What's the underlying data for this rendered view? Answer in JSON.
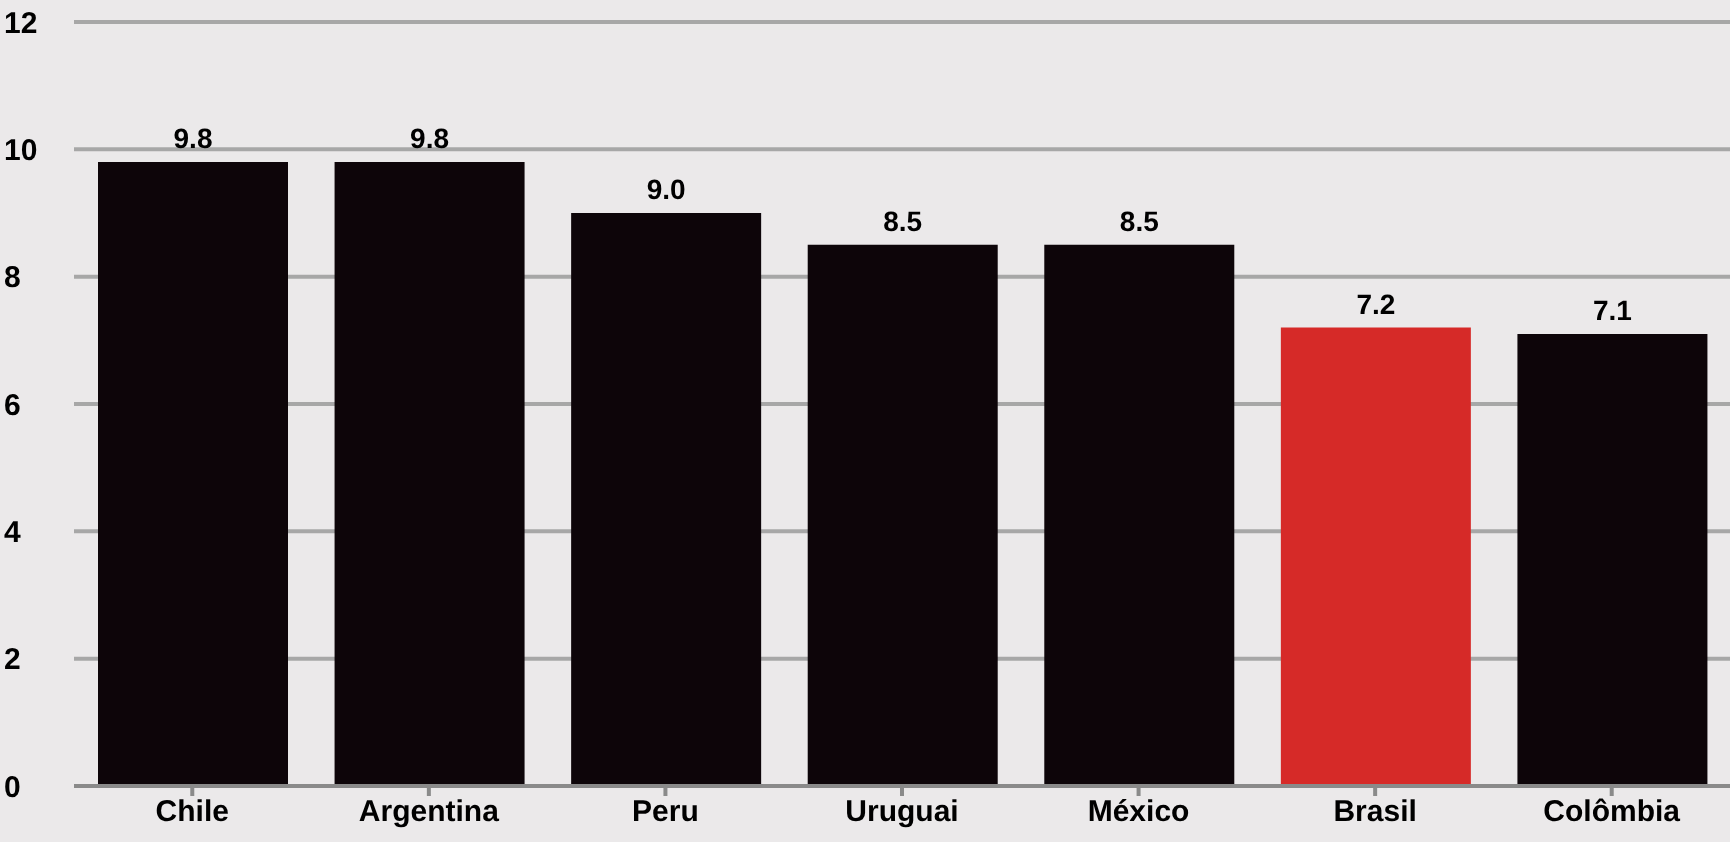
{
  "chart_data": {
    "type": "bar",
    "categories": [
      "Chile",
      "Argentina",
      "Peru",
      "Uruguai",
      "México",
      "Brasil",
      "Colômbia"
    ],
    "values": [
      9.8,
      9.8,
      9.0,
      8.5,
      8.5,
      7.2,
      7.1
    ],
    "colors": [
      "#0d0509",
      "#0d0509",
      "#0d0509",
      "#0d0509",
      "#0d0509",
      "#d62a28",
      "#0d0509"
    ],
    "value_labels": [
      "9.8",
      "9.8",
      "9.0",
      "8.5",
      "8.5",
      "7.2",
      "7.1"
    ],
    "ylim": [
      0,
      12
    ],
    "yticks": [
      0,
      2,
      4,
      6,
      8,
      10,
      12
    ],
    "grid": "y"
  }
}
